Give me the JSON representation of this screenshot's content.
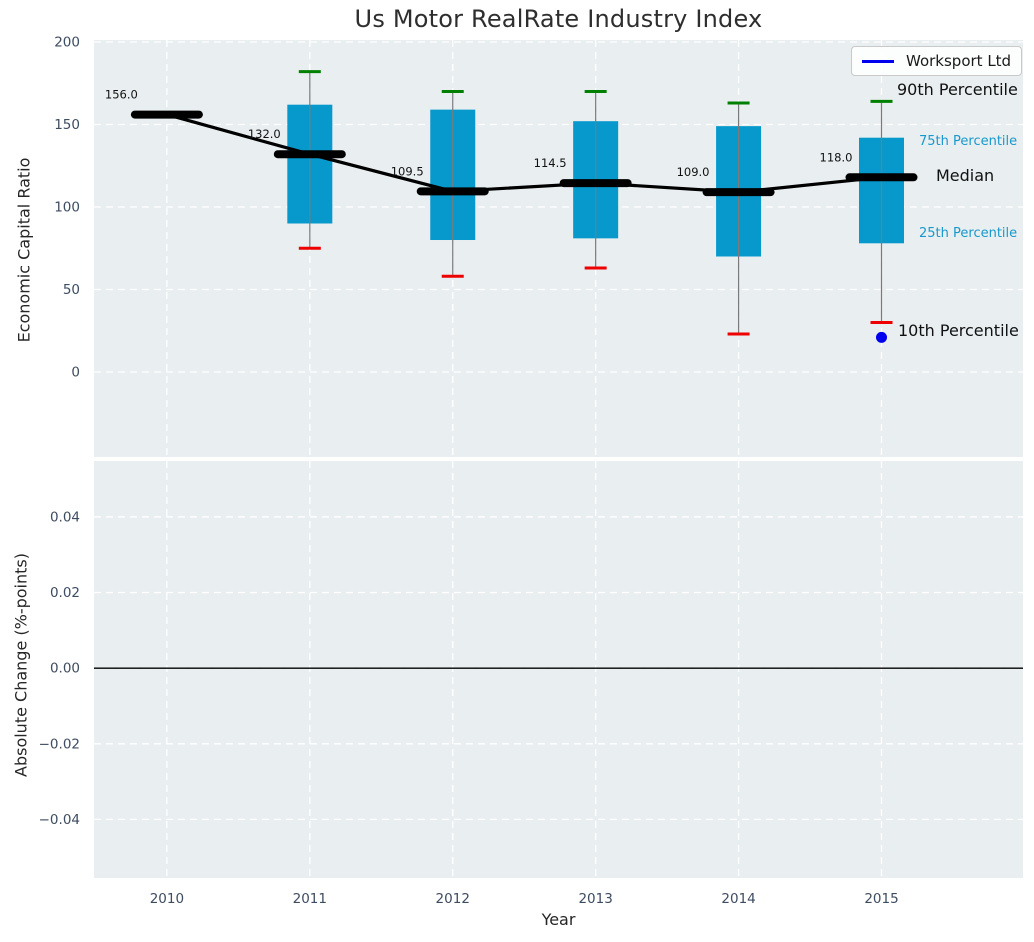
{
  "title": "Us Motor RealRate Industry Index",
  "legend": {
    "label": "Worksport Ltd"
  },
  "side_labels": {
    "p90": "90th Percentile",
    "p75": "75th Percentile",
    "median": "Median",
    "p25": "25th Percentile",
    "p10": "10th Percentile"
  },
  "colors": {
    "axes_bg": "#e9eef0",
    "grid": "#ffffff",
    "box_fill": "#0899cc",
    "p90_cap": "#008000",
    "p10_cap": "#ee0000",
    "median": "#000000",
    "trend": "#000000",
    "whisker": "#7a7a7a",
    "point": "#0000ee",
    "tick_text": "#3e4c60",
    "annotation_text": "#111111",
    "zero_line": "#000000"
  },
  "chart_data": [
    {
      "type": "boxplot",
      "title": "Us Motor RealRate Industry Index",
      "ylabel": "Economic Capital Ratio",
      "xlabel": "",
      "categories": [
        2010,
        2011,
        2012,
        2013,
        2014,
        2015
      ],
      "series": [
        {
          "name": "90th Percentile",
          "values": [
            null,
            182,
            170,
            170,
            163,
            164
          ]
        },
        {
          "name": "75th Percentile",
          "values": [
            null,
            162,
            159,
            152,
            149,
            142
          ]
        },
        {
          "name": "Median",
          "values": [
            156.0,
            132.0,
            109.5,
            114.5,
            109.0,
            118.0
          ]
        },
        {
          "name": "25th Percentile",
          "values": [
            null,
            90,
            80,
            81,
            70,
            78
          ]
        },
        {
          "name": "10th Percentile",
          "values": [
            null,
            75,
            58,
            63,
            23,
            30
          ]
        }
      ],
      "median_labels": [
        "156.0",
        "132.0",
        "109.5",
        "114.5",
        "109.0",
        "118.0"
      ],
      "worksport_point": {
        "x": 2015,
        "y": 21,
        "name": "Worksport Ltd"
      },
      "legend_entries": [
        "Worksport Ltd"
      ],
      "legend_position": "upper right",
      "yticks": {
        "values": [
          0,
          50,
          100,
          150,
          200
        ],
        "labels": [
          "0",
          "50",
          "100",
          "150",
          "200"
        ]
      },
      "ylim": [
        -51.5,
        201.2
      ],
      "xlim": [
        2009.49,
        2015.99
      ],
      "grid": true
    },
    {
      "type": "line",
      "title": "",
      "ylabel": "Absolute Change (%-points)",
      "xlabel": "Year",
      "series": [],
      "zero_line": 0.0,
      "yticks": {
        "values": [
          -0.04,
          -0.02,
          0.0,
          0.02,
          0.04
        ],
        "labels": [
          "−0.04",
          "−0.02",
          "0.00",
          "0.02",
          "0.04"
        ]
      },
      "xticks": {
        "values": [
          2010,
          2011,
          2012,
          2013,
          2014,
          2015
        ],
        "labels": [
          "2010",
          "2011",
          "2012",
          "2013",
          "2014",
          "2015"
        ]
      },
      "ylim": [
        -0.0555,
        0.0548
      ],
      "xlim": [
        2009.49,
        2015.99
      ],
      "grid": true
    }
  ]
}
